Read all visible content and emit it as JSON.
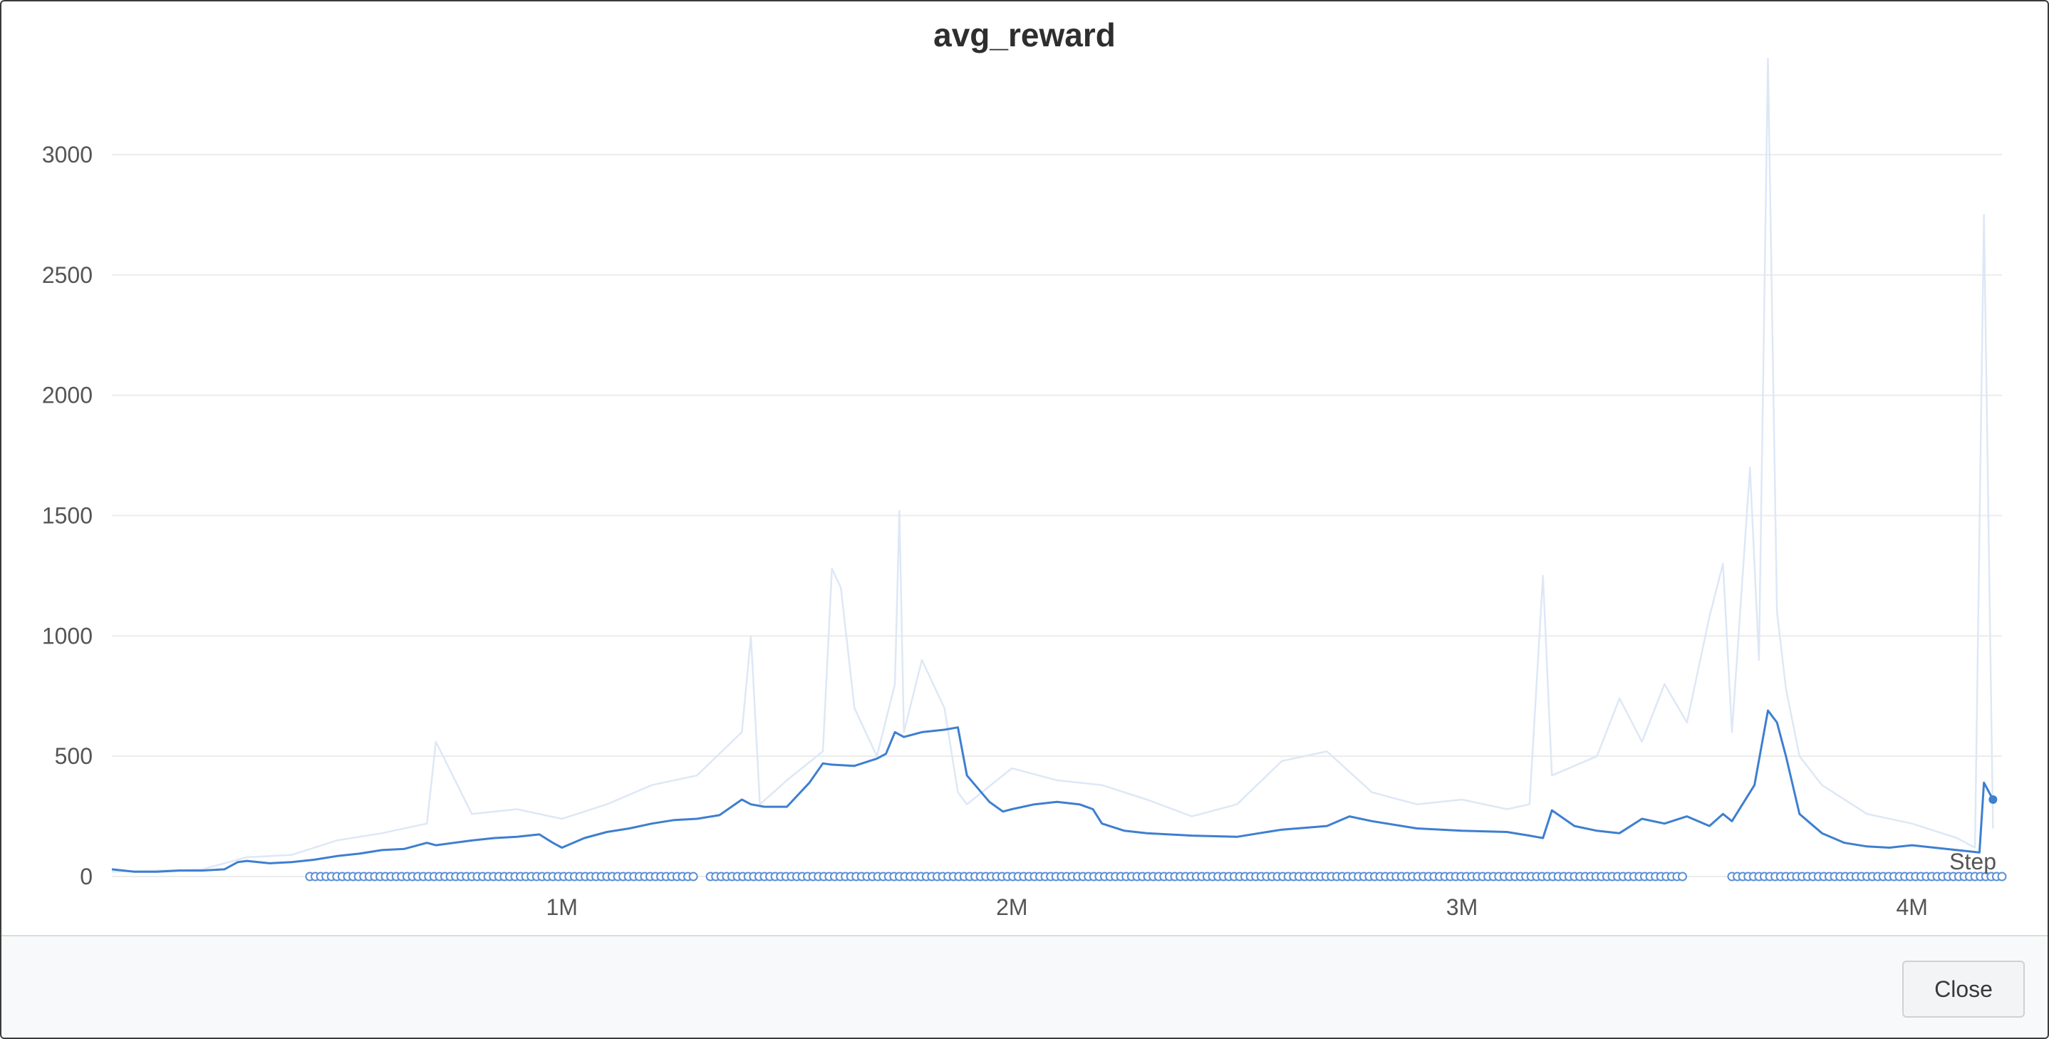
{
  "dialog": {
    "close_label": "Close"
  },
  "chart_data": {
    "type": "line",
    "title": "avg_reward",
    "xlabel": "Step",
    "ylabel": "",
    "xlim": [
      0,
      4200000
    ],
    "ylim": [
      0,
      3400
    ],
    "x_ticks": [
      {
        "value": 1000000,
        "label": "1M"
      },
      {
        "value": 2000000,
        "label": "2M"
      },
      {
        "value": 3000000,
        "label": "3M"
      },
      {
        "value": 4000000,
        "label": "4M"
      }
    ],
    "y_ticks": [
      {
        "value": 0,
        "label": "0"
      },
      {
        "value": 500,
        "label": "500"
      },
      {
        "value": 1000,
        "label": "1000"
      },
      {
        "value": 1500,
        "label": "1500"
      },
      {
        "value": 2000,
        "label": "2000"
      },
      {
        "value": 2500,
        "label": "2500"
      },
      {
        "value": 3000,
        "label": "3000"
      }
    ],
    "grid": true,
    "colors": {
      "smoothed": "#3d7fd0",
      "raw": "#dde8f6",
      "marker": "#5b8fd6",
      "grid": "#ececec",
      "tick": "#555555"
    },
    "series": [
      {
        "kind": "smoothed",
        "x": [
          0,
          50000,
          100000,
          150000,
          200000,
          250000,
          280000,
          300000,
          350000,
          400000,
          450000,
          500000,
          550000,
          600000,
          650000,
          700000,
          720000,
          800000,
          850000,
          900000,
          950000,
          980000,
          1000000,
          1050000,
          1100000,
          1150000,
          1200000,
          1250000,
          1300000,
          1350000,
          1400000,
          1420000,
          1450000,
          1500000,
          1550000,
          1580000,
          1600000,
          1650000,
          1700000,
          1720000,
          1740000,
          1760000,
          1800000,
          1850000,
          1880000,
          1900000,
          1950000,
          1980000,
          2000000,
          2050000,
          2100000,
          2150000,
          2180000,
          2200000,
          2250000,
          2300000,
          2400000,
          2500000,
          2550000,
          2600000,
          2700000,
          2750000,
          2800000,
          2900000,
          3000000,
          3100000,
          3150000,
          3180000,
          3200000,
          3250000,
          3300000,
          3350000,
          3400000,
          3450000,
          3500000,
          3550000,
          3580000,
          3600000,
          3650000,
          3680000,
          3700000,
          3720000,
          3750000,
          3800000,
          3850000,
          3900000,
          3950000,
          4000000,
          4050000,
          4100000,
          4150000,
          4160000,
          4180000
        ],
        "y": [
          30,
          20,
          20,
          25,
          25,
          30,
          60,
          65,
          55,
          60,
          70,
          85,
          95,
          110,
          115,
          140,
          130,
          150,
          160,
          165,
          175,
          140,
          120,
          160,
          185,
          200,
          220,
          235,
          240,
          255,
          320,
          300,
          290,
          290,
          390,
          470,
          465,
          460,
          490,
          510,
          600,
          580,
          600,
          610,
          620,
          420,
          310,
          270,
          280,
          300,
          310,
          300,
          280,
          220,
          190,
          180,
          170,
          165,
          180,
          195,
          210,
          250,
          230,
          200,
          190,
          185,
          170,
          160,
          275,
          210,
          190,
          180,
          240,
          220,
          250,
          210,
          260,
          230,
          380,
          690,
          640,
          500,
          260,
          180,
          140,
          125,
          120,
          130,
          120,
          110,
          100,
          390,
          320
        ],
        "name": ""
      },
      {
        "kind": "raw",
        "x": [
          0,
          100000,
          200000,
          300000,
          400000,
          500000,
          600000,
          700000,
          720000,
          800000,
          900000,
          1000000,
          1100000,
          1200000,
          1300000,
          1400000,
          1420000,
          1440000,
          1500000,
          1580000,
          1600000,
          1620000,
          1650000,
          1700000,
          1740000,
          1750000,
          1760000,
          1800000,
          1850000,
          1880000,
          1900000,
          2000000,
          2100000,
          2200000,
          2300000,
          2400000,
          2500000,
          2600000,
          2700000,
          2800000,
          2900000,
          3000000,
          3100000,
          3150000,
          3180000,
          3200000,
          3250000,
          3300000,
          3350000,
          3400000,
          3450000,
          3500000,
          3550000,
          3580000,
          3600000,
          3640000,
          3660000,
          3680000,
          3700000,
          3720000,
          3750000,
          3800000,
          3900000,
          4000000,
          4100000,
          4140000,
          4160000,
          4180000
        ],
        "y": [
          20,
          25,
          30,
          80,
          90,
          150,
          180,
          220,
          560,
          260,
          280,
          240,
          300,
          380,
          420,
          600,
          1000,
          300,
          400,
          520,
          1280,
          1200,
          700,
          500,
          800,
          1520,
          600,
          900,
          700,
          350,
          300,
          450,
          400,
          380,
          320,
          250,
          300,
          480,
          520,
          350,
          300,
          320,
          280,
          300,
          1250,
          420,
          460,
          500,
          740,
          560,
          800,
          640,
          1080,
          1300,
          600,
          1700,
          900,
          3400,
          1100,
          780,
          500,
          380,
          260,
          220,
          160,
          120,
          2750,
          200
        ],
        "name": ""
      }
    ],
    "marker_rows": {
      "y": 0,
      "dense_segments": [
        [
          440000,
          1300000
        ],
        [
          1330000,
          3500000
        ],
        [
          3600000,
          4200000
        ]
      ],
      "end_point": {
        "x": 4180000,
        "y": 320
      }
    }
  }
}
